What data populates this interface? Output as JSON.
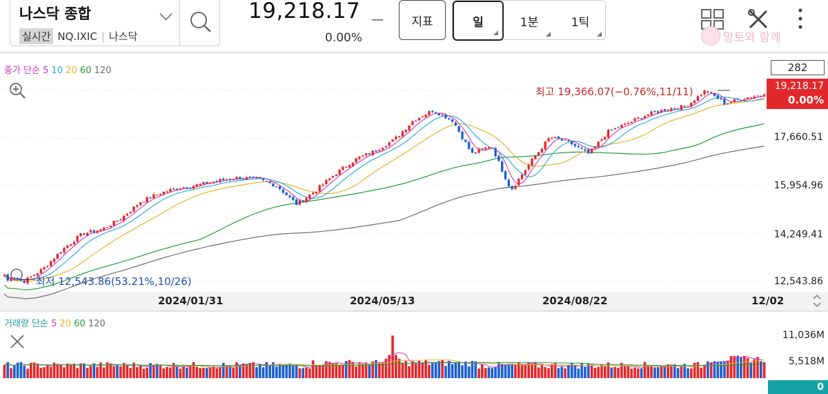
{
  "header": {
    "index_name": "나스닥 종합",
    "realtime_tag": "실시간",
    "symbol": "NQ.IXIC",
    "market": "나스닥",
    "price": "19,218.17",
    "price_dash": "—",
    "change_pct": "0.00%",
    "indicator_label": "지표",
    "periods": [
      "일",
      "1분",
      "1틱"
    ],
    "active_period": "일",
    "watermark": "망토와 함께"
  },
  "colors": {
    "up": "#e3282c",
    "down": "#1f5fd1",
    "ma5": "#c63ab7",
    "ma10": "#23a6d8",
    "ma20": "#e2b429",
    "ma60": "#1e9c3c",
    "ma120": "#6d6d6d"
  },
  "price_panel": {
    "legend": {
      "prefix": "종가 단순",
      "periods": [
        "5",
        "10",
        "20",
        "60",
        "120"
      ]
    },
    "count_box": "282",
    "current_price": "19,218.17",
    "current_pct": "0.00%",
    "y_ticks": [
      "17,660.51",
      "15,954.96",
      "14,249.41",
      "12,543.86"
    ],
    "high_annotation": "최고 19,366.07(−0.76%,11/11)",
    "low_annotation": "최저 12,543.86(53.21%,10/26)",
    "x_labels": [
      "2024/01/31",
      "2024/05/13",
      "2024/08/22",
      "12/02"
    ]
  },
  "volume_panel": {
    "legend": {
      "prefix": "거래량 단순",
      "periods": [
        "5",
        "20",
        "60",
        "120"
      ]
    },
    "y_ticks": [
      "11,036M",
      "5,518M"
    ],
    "current_volume": "0"
  },
  "chart_data": [
    {
      "type": "candlestick",
      "title": "나스닥 종합 (NQ.IXIC) 일봉",
      "x_labels": [
        "2024/01/31",
        "2024/05/13",
        "2024/08/22",
        "12/02"
      ],
      "ylim": [
        12543.86,
        19366.07
      ],
      "y_ticks": [
        12543.86,
        14249.41,
        15954.96,
        17660.51
      ],
      "high": {
        "value": 19366.07,
        "date": "11/11"
      },
      "low": {
        "value": 12543.86,
        "date": "10/26"
      },
      "last": 19218.17,
      "close_series": [
        12800,
        12543.86,
        13000,
        13700,
        14250,
        14400,
        14800,
        15400,
        15700,
        15900,
        16000,
        16150,
        16250,
        16200,
        15950,
        15300,
        15800,
        16400,
        16900,
        17200,
        17600,
        18300,
        18660,
        18300,
        17100,
        17400,
        15800,
        16800,
        17700,
        17500,
        17100,
        17900,
        18200,
        18500,
        18700,
        18800,
        19366.07,
        18900,
        19100,
        19218.17
      ],
      "moving_averages": [
        "5",
        "10",
        "20",
        "60",
        "120"
      ]
    },
    {
      "type": "bar",
      "title": "거래량",
      "y_ticks_label": [
        "11,036M",
        "5,518M"
      ],
      "ylim": [
        0,
        11036
      ],
      "unit": "M",
      "spike": {
        "value": 11000,
        "near": "2024/06"
      }
    }
  ]
}
